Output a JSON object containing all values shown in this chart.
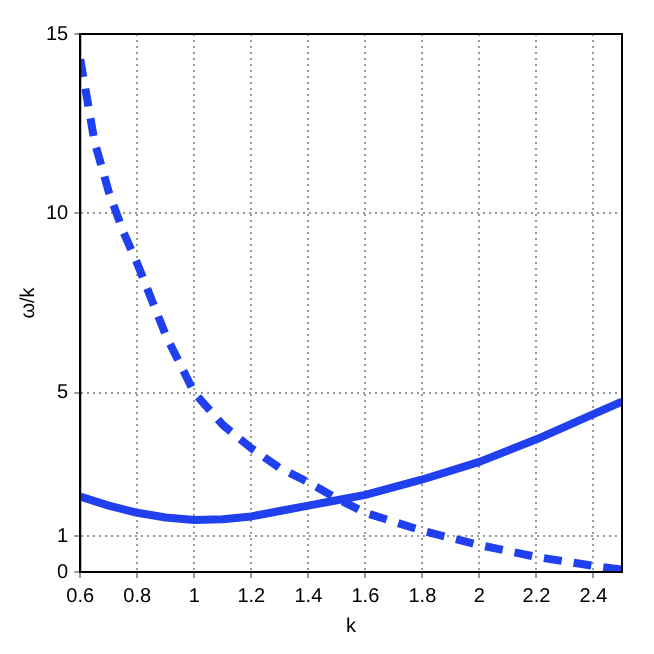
{
  "chart_data": {
    "type": "line",
    "xlabel": "k",
    "ylabel": "ω/k",
    "xlim": [
      0.6,
      2.5
    ],
    "xticks": [
      0.6,
      0.8,
      1,
      1.2,
      1.4,
      1.6,
      1.8,
      2,
      2.2,
      2.4
    ],
    "ylim": [
      0,
      15
    ],
    "yticks": [
      0,
      1,
      5,
      10,
      15
    ],
    "grid": true,
    "legend": false,
    "marker": "none",
    "series": [
      {
        "color": "#2040f0",
        "line_style": "solid",
        "x": [
          0.6,
          0.7,
          0.8,
          0.9,
          1,
          1.1,
          1.2,
          1.3,
          1.4,
          1.5,
          1.6,
          1.8,
          2.0,
          2.2,
          2.4,
          2.5
        ],
        "values": [
          2.1,
          1.85,
          1.65,
          1.52,
          1.45,
          1.47,
          1.55,
          1.7,
          1.85,
          2.0,
          2.15,
          2.58,
          3.07,
          3.7,
          4.4,
          4.75
        ]
      },
      {
        "color": "#2040f0",
        "line_style": "dashed",
        "x": [
          0.6,
          0.65,
          0.7,
          0.75,
          0.8,
          0.9,
          1,
          1.1,
          1.2,
          1.3,
          1.4,
          1.5,
          1.6,
          1.8,
          2.0,
          2.2,
          2.4,
          2.5
        ],
        "values": [
          14.3,
          12.0,
          10.6,
          9.5,
          8.6,
          6.6,
          5.0,
          4.1,
          3.45,
          2.9,
          2.5,
          2.05,
          1.65,
          1.15,
          0.75,
          0.42,
          0.17,
          0.07
        ]
      }
    ]
  }
}
